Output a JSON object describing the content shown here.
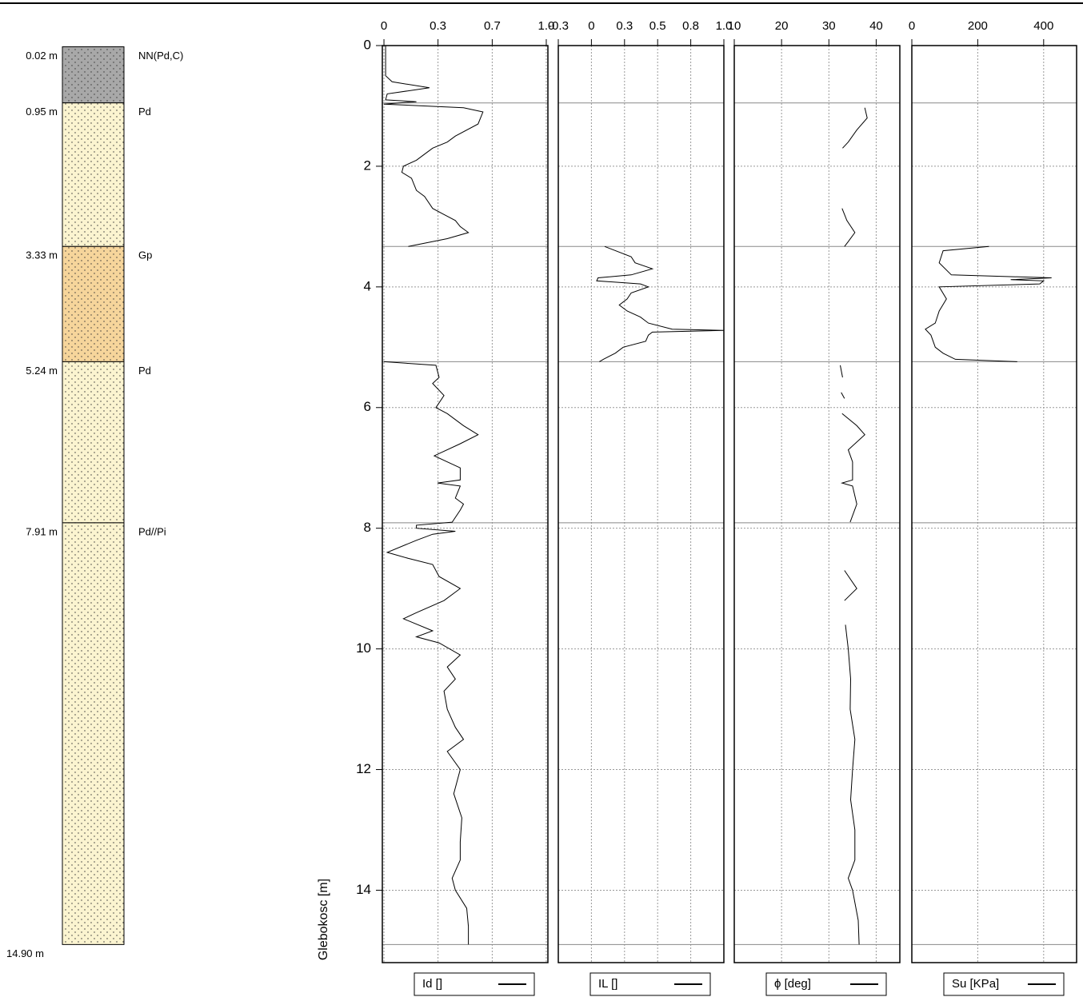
{
  "borehole": {
    "layers": [
      {
        "top": 0.02,
        "top_label": "0.02 m",
        "name": "NN(Pd,C)",
        "color": "#a8a8a8"
      },
      {
        "top": 0.95,
        "top_label": "0.95 m",
        "name": "Pd",
        "color": "#fbf4d0"
      },
      {
        "top": 3.33,
        "top_label": "3.33 m",
        "name": "Gp",
        "color": "#f6d59b"
      },
      {
        "top": 5.24,
        "top_label": "5.24 m",
        "name": "Pd",
        "color": "#fbf4d0"
      },
      {
        "top": 7.91,
        "top_label": "7.91 m",
        "name": "Pd//Pi",
        "color": "#fbf4d0"
      }
    ],
    "bottom": 14.9,
    "bottom_label": "14.90 m"
  },
  "chart_data": {
    "type": "line",
    "ylabel": "Glebokosc [m]",
    "ylim": [
      0,
      15.2
    ],
    "yticks": [
      0,
      2,
      4,
      6,
      8,
      10,
      12,
      14
    ],
    "grid": true,
    "panels": [
      {
        "xlim": [
          -0.01,
          1.01
        ],
        "xticks": [
          0,
          {
            "value": 0.333,
            "label": "0.3"
          },
          {
            "value": 0.667,
            "label": "0.7"
          },
          {
            "value": 1.0,
            "label": "1.0"
          }
        ],
        "series": [
          {
            "name": "Id []",
            "color": "#000000",
            "depth": [
              0,
              0.5,
              0.6,
              0.7,
              0.8,
              0.9,
              0.93,
              0.97,
              1.03,
              1.1,
              1.3,
              1.5,
              1.6,
              1.7,
              1.8,
              1.9,
              2.0,
              2.1,
              2.2,
              2.4,
              2.5,
              2.7,
              2.8,
              2.9,
              3.0,
              3.1,
              3.2,
              3.33,
              4.3,
              5.24,
              5.3,
              5.5,
              5.6,
              5.8,
              6.0,
              6.1,
              6.3,
              6.45,
              6.6,
              6.8,
              6.9,
              7.0,
              7.2,
              7.25,
              7.3,
              7.5,
              7.6,
              7.7,
              7.9,
              7.95,
              8.0,
              8.05,
              8.1,
              8.2,
              8.4,
              8.5,
              8.6,
              8.8,
              9.0,
              9.2,
              9.4,
              9.5,
              9.7,
              9.8,
              9.9,
              10.1,
              10.3,
              10.5,
              10.7,
              11.0,
              11.3,
              11.5,
              11.7,
              12.0,
              12.4,
              12.8,
              13.2,
              13.5,
              13.8,
              14.0,
              14.3,
              14.6,
              14.9
            ],
            "values": [
              0.01,
              0.01,
              0.05,
              0.28,
              0.02,
              0.01,
              0.2,
              0.0,
              0.49,
              0.61,
              0.58,
              0.44,
              0.39,
              0.3,
              0.25,
              0.2,
              0.12,
              0.11,
              0.17,
              0.2,
              0.25,
              0.3,
              0.37,
              0.44,
              0.47,
              0.52,
              0.39,
              0.15,
              null,
              0.0,
              0.32,
              0.34,
              0.3,
              0.37,
              0.32,
              0.39,
              0.49,
              0.58,
              0.47,
              0.31,
              0.39,
              0.47,
              0.47,
              0.33,
              0.47,
              0.44,
              0.49,
              0.47,
              0.42,
              0.2,
              0.2,
              0.44,
              0.3,
              0.2,
              0.02,
              0.15,
              0.3,
              0.34,
              0.47,
              0.37,
              0.2,
              0.12,
              0.3,
              0.2,
              0.34,
              0.47,
              0.39,
              0.44,
              0.37,
              0.39,
              0.44,
              0.49,
              0.39,
              0.47,
              0.43,
              0.48,
              0.47,
              0.47,
              0.42,
              0.44,
              0.51,
              0.52,
              0.52
            ]
          }
        ]
      },
      {
        "xlim": [
          -0.25,
          1.0
        ],
        "xticks": [
          {
            "value": -0.25,
            "label": "-0.3"
          },
          0,
          {
            "value": 0.25,
            "label": "0.3"
          },
          0.5,
          {
            "value": 0.75,
            "label": "0.8"
          },
          {
            "value": 1.0,
            "label": "1.0"
          }
        ],
        "series": [
          {
            "name": "IL []",
            "color": "#000000",
            "depth": [
              3.33,
              3.5,
              3.6,
              3.7,
              3.8,
              3.85,
              3.9,
              3.95,
              4.0,
              4.1,
              4.2,
              4.3,
              4.4,
              4.5,
              4.6,
              4.7,
              4.72,
              4.75,
              4.8,
              4.9,
              5.0,
              5.1,
              5.2,
              5.24
            ],
            "values": [
              0.1,
              0.3,
              0.33,
              0.46,
              0.3,
              0.05,
              0.04,
              0.37,
              0.43,
              0.3,
              0.27,
              0.21,
              0.27,
              0.37,
              0.43,
              0.61,
              1.0,
              0.46,
              0.43,
              0.41,
              0.24,
              0.18,
              0.09,
              0.06
            ]
          }
        ]
      },
      {
        "xlim": [
          10,
          45
        ],
        "xticks": [
          10,
          20,
          30,
          40
        ],
        "series": [
          {
            "name": "ϕ [deg]",
            "color": "#000000",
            "depth": [
              1.03,
              1.2,
              1.4,
              1.6,
              1.7,
              2.2,
              2.7,
              2.9,
              3.1,
              3.25,
              3.33,
              4.3,
              5.3,
              5.5,
              5.6,
              5.75,
              5.85,
              5.95,
              6.1,
              6.3,
              6.45,
              6.7,
              6.9,
              7.2,
              7.25,
              7.3,
              7.6,
              7.9,
              8.3,
              8.7,
              9.0,
              9.2,
              9.4,
              9.6,
              10.0,
              10.5,
              11.0,
              11.5,
              12.0,
              12.5,
              13.0,
              13.5,
              13.8,
              14.0,
              14.5,
              14.9
            ],
            "values": [
              37.6,
              38.1,
              35.9,
              34.1,
              32.9,
              null,
              32.8,
              33.8,
              35.5,
              34.1,
              33.3,
              null,
              32.4,
              32.9,
              null,
              32.6,
              33.3,
              null,
              32.8,
              35.9,
              37.6,
              34.1,
              35.0,
              35.0,
              32.8,
              35.0,
              35.9,
              34.5,
              null,
              33.3,
              35.9,
              33.3,
              null,
              33.5,
              34.1,
              34.6,
              34.5,
              35.5,
              35.0,
              34.6,
              35.5,
              35.5,
              34.1,
              35.0,
              36.2,
              36.4
            ]
          }
        ]
      },
      {
        "xlim": [
          0,
          500
        ],
        "xticks": [
          0,
          200,
          400
        ],
        "series": [
          {
            "name": "Su [KPa]",
            "color": "#000000",
            "depth": [
              3.33,
              3.4,
              3.6,
              3.8,
              3.85,
              3.88,
              3.9,
              3.95,
              4.0,
              4.2,
              4.4,
              4.6,
              4.7,
              4.8,
              5.0,
              5.1,
              5.2,
              5.24
            ],
            "values": [
              234,
              95,
              83,
              120,
              424,
              300,
              400,
              388,
              83,
              105,
              83,
              71,
              41,
              58,
              71,
              95,
              132,
              320
            ]
          }
        ]
      }
    ]
  }
}
